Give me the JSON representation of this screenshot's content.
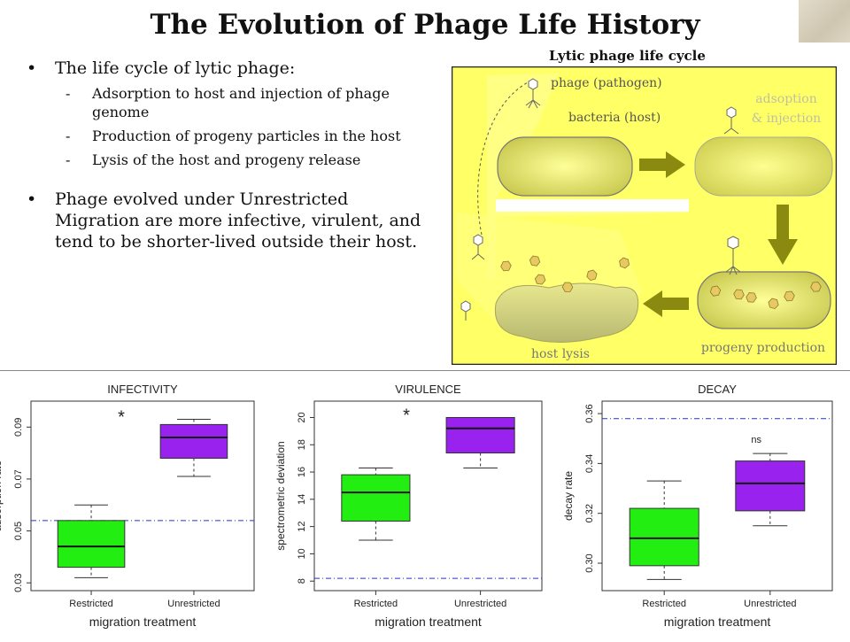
{
  "slide": {
    "title": "The Evolution of Phage Life History",
    "bullet1": "The life cycle of lytic phage:",
    "subitems": [
      "Adsorption to host and injection of phage genome",
      "Production of progeny particles in the host",
      "Lysis of the host and progeny release"
    ],
    "bullet2": "Phage evolved under Unrestricted Migration are more infective, virulent, and tend to be shorter-lived outside their host."
  },
  "cycle": {
    "title": "Lytic  phage life cycle",
    "phage_label": "phage (pathogen)",
    "bacteria_label": "bacteria (host)",
    "adsorption_label_1": "adsoption",
    "adsorption_label_2": "& injection",
    "progeny_label": "progeny production",
    "lysis_label": "host lysis"
  },
  "colors": {
    "highlight": "#ffff66",
    "restricted": "#22ee11",
    "unrestricted": "#9922ee",
    "reference_line": "#2233cc",
    "arrow": "#8a8a10"
  },
  "chart_data": [
    {
      "type": "box",
      "title": "INFECTIVITY",
      "xlabel": "migration treatment",
      "ylabel": "adsorption rate",
      "categories": [
        "Restricted",
        "Unrestricted"
      ],
      "yticks": [
        "0.03",
        "0.05",
        "0.07",
        "0.09"
      ],
      "ylim": [
        0.027,
        0.1
      ],
      "boxes": [
        {
          "min": 0.032,
          "q1": 0.036,
          "median": 0.044,
          "q3": 0.054,
          "max": 0.06
        },
        {
          "min": 0.071,
          "q1": 0.078,
          "median": 0.086,
          "q3": 0.091,
          "max": 0.093
        }
      ],
      "reference": 0.054,
      "annotation": "*"
    },
    {
      "type": "box",
      "title": "VIRULENCE",
      "xlabel": "migration treatment",
      "ylabel": "spectrometric deviation",
      "categories": [
        "Restricted",
        "Unrestricted"
      ],
      "yticks": [
        "8",
        "10",
        "12",
        "14",
        "16",
        "18",
        "20"
      ],
      "ylim": [
        7.3,
        21.2
      ],
      "boxes": [
        {
          "min": 11.0,
          "q1": 12.4,
          "median": 14.5,
          "q3": 15.8,
          "max": 16.3
        },
        {
          "min": 16.3,
          "q1": 17.4,
          "median": 19.2,
          "q3": 20.0,
          "max": 20.0
        }
      ],
      "reference": 8.2,
      "annotation": "*"
    },
    {
      "type": "box",
      "title": "DECAY",
      "xlabel": "migration treatment",
      "ylabel": "decay rate",
      "categories": [
        "Restricted",
        "Unrestricted"
      ],
      "yticks": [
        "0.30",
        "0.32",
        "0.34",
        "0.36"
      ],
      "ylim": [
        0.289,
        0.365
      ],
      "boxes": [
        {
          "min": 0.2935,
          "q1": 0.299,
          "median": 0.31,
          "q3": 0.322,
          "max": 0.333
        },
        {
          "min": 0.315,
          "q1": 0.321,
          "median": 0.332,
          "q3": 0.341,
          "max": 0.344
        }
      ],
      "reference": 0.358,
      "annotation": "ns"
    }
  ]
}
